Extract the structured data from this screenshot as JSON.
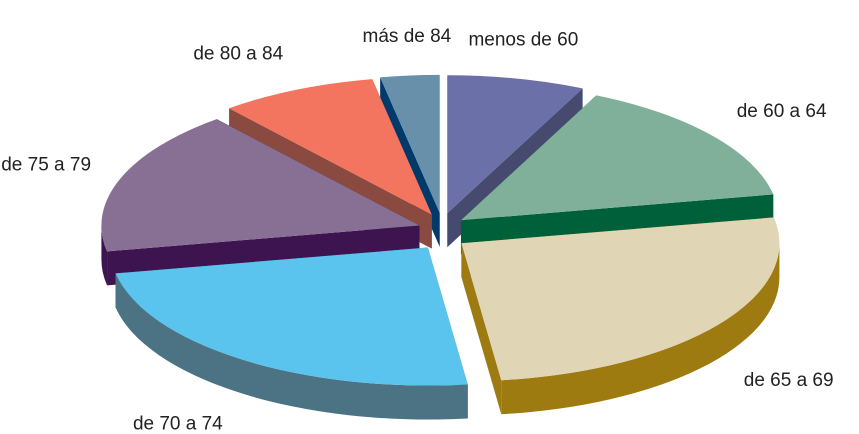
{
  "chart_data": {
    "type": "pie",
    "categories": [
      "menos de 60",
      "de 60 a 64",
      "de 65 a 69",
      "de 70 a 74",
      "de 75 a 79",
      "de 80 a 84",
      "más de 84"
    ],
    "values": [
      7,
      15,
      26,
      24,
      17,
      8,
      3
    ],
    "colors": [
      "#6b70a8",
      "#80b09a",
      "#e0d5b5",
      "#5bc4ee",
      "#877093",
      "#f37560",
      "#6890aa"
    ],
    "side_colors": [
      "#454a6e",
      "#00603a",
      "#9e7b10",
      "#4b7383",
      "#3e1450",
      "#8a4a40",
      "#003a6a"
    ]
  }
}
